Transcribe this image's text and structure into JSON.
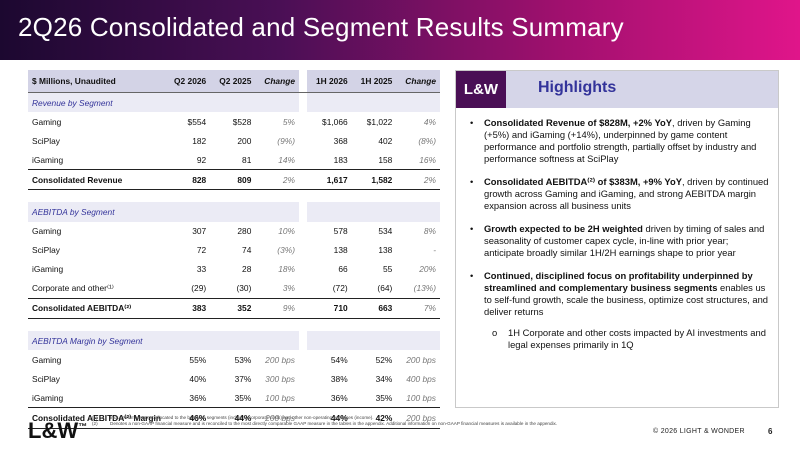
{
  "title": "2Q26 Consolidated and Segment Results Summary",
  "table": {
    "headers": [
      "$ Millions, Unaudited",
      "Q2 2026",
      "Q2 2025",
      "Change",
      "1H 2026",
      "1H 2025",
      "Change"
    ],
    "rows": [
      {
        "type": "section",
        "label": "Revenue by Segment"
      },
      {
        "type": "row",
        "label": "Gaming",
        "q226": "$554",
        "q225": "$528",
        "qchg": "5%",
        "h126": "$1,066",
        "h125": "$1,022",
        "hchg": "4%"
      },
      {
        "type": "row",
        "label": "SciPlay",
        "q226": "182",
        "q225": "200",
        "qchg": "(9%)",
        "h126": "368",
        "h125": "402",
        "hchg": "(8%)"
      },
      {
        "type": "row",
        "label": "iGaming",
        "q226": "92",
        "q225": "81",
        "qchg": "14%",
        "h126": "183",
        "h125": "158",
        "hchg": "16%"
      },
      {
        "type": "total",
        "label": "Consolidated Revenue",
        "q226": "828",
        "q225": "809",
        "qchg": "2%",
        "h126": "1,617",
        "h125": "1,582",
        "hchg": "2%"
      },
      {
        "type": "spacer"
      },
      {
        "type": "section",
        "label": "AEBITDA by Segment"
      },
      {
        "type": "row",
        "label": "Gaming",
        "q226": "307",
        "q225": "280",
        "qchg": "10%",
        "h126": "578",
        "h125": "534",
        "hchg": "8%"
      },
      {
        "type": "row",
        "label": "SciPlay",
        "q226": "72",
        "q225": "74",
        "qchg": "(3%)",
        "h126": "138",
        "h125": "138",
        "hchg": "-"
      },
      {
        "type": "row",
        "label": "iGaming",
        "q226": "33",
        "q225": "28",
        "qchg": "18%",
        "h126": "66",
        "h125": "55",
        "hchg": "20%"
      },
      {
        "type": "row",
        "label": "Corporate and other⁽¹⁾",
        "q226": "(29)",
        "q225": "(30)",
        "qchg": "3%",
        "h126": "(72)",
        "h125": "(64)",
        "hchg": "(13%)"
      },
      {
        "type": "total",
        "label": "Consolidated AEBITDA⁽²⁾",
        "q226": "383",
        "q225": "352",
        "qchg": "9%",
        "h126": "710",
        "h125": "663",
        "hchg": "7%"
      },
      {
        "type": "spacer"
      },
      {
        "type": "section",
        "label": "AEBITDA Margin by Segment"
      },
      {
        "type": "row",
        "label": "Gaming",
        "q226": "55%",
        "q225": "53%",
        "qchg": "200 bps",
        "h126": "54%",
        "h125": "52%",
        "hchg": "200 bps"
      },
      {
        "type": "row",
        "label": "SciPlay",
        "q226": "40%",
        "q225": "37%",
        "qchg": "300 bps",
        "h126": "38%",
        "h125": "34%",
        "hchg": "400 bps"
      },
      {
        "type": "row",
        "label": "iGaming",
        "q226": "36%",
        "q225": "35%",
        "qchg": "100 bps",
        "h126": "36%",
        "h125": "35%",
        "hchg": "100 bps"
      },
      {
        "type": "total",
        "label": "Consolidated AEBITDA⁽²⁾ Margin",
        "q226": "46%",
        "q225": "44%",
        "qchg": "200 bps",
        "h126": "44%",
        "h125": "42%",
        "hchg": "200 bps"
      }
    ]
  },
  "highlights": {
    "logo": "L&W",
    "title": "Highlights",
    "bullets": [
      {
        "bold": "Consolidated Revenue of $828M, +2% YoY",
        "text": ", driven by Gaming (+5%) and iGaming (+14%), underpinned by game content performance and portfolio strength, partially offset by industry and performance softness at SciPlay"
      },
      {
        "bold": "Consolidated AEBITDA⁽²⁾ of $383M, +9% YoY",
        "text": ", driven by continued growth across Gaming and iGaming, and strong AEBITDA margin expansion across all business units"
      },
      {
        "bold": "Growth expected to be 2H weighted",
        "text": " driven by timing of sales and seasonality of customer capex cycle, in-line with prior year; anticipate broadly similar 1H/2H earnings shape to prior year"
      },
      {
        "bold": "Continued, disciplined focus on profitability underpinned by streamlined and complementary business segments",
        "text": " enables us to self-fund growth, scale the business, optimize cost structures, and deliver returns"
      }
    ],
    "sub_bullet": "1H Corporate and other costs impacted by AI investments and legal expenses primarily in 1Q"
  },
  "footer": {
    "logo": "L&W",
    "logo_mark": "™",
    "notes": [
      {
        "n": "(1)",
        "text": "Includes amounts not allocated to the business segments (including corporate costs) and other non-operating expenses (income)."
      },
      {
        "n": "(2)",
        "text": "Denotes a non-GAAP financial measure and is reconciled to the most directly comparable GAAP measure in the tables in the appendix. Additional information on non-GAAP financial measures is available in the appendix."
      }
    ],
    "copyright": "© 2026 LIGHT & WONDER",
    "page": "6"
  }
}
